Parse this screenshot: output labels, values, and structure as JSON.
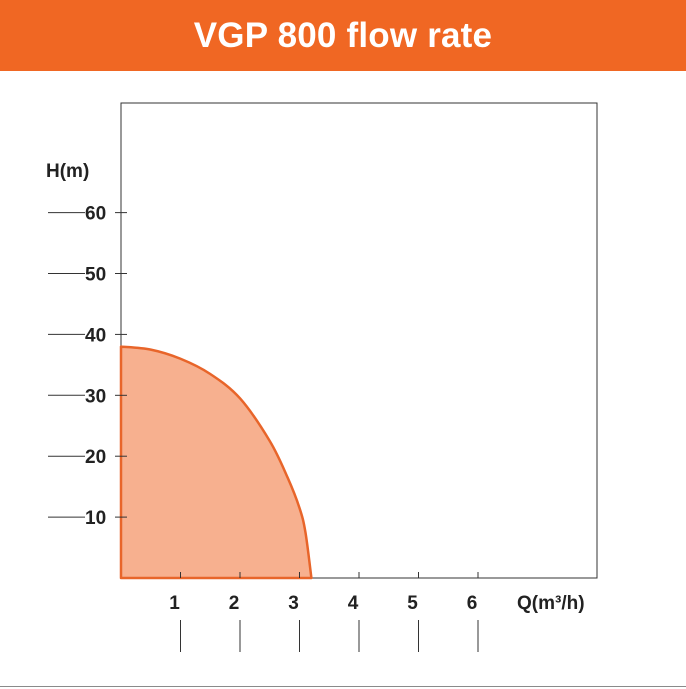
{
  "colors": {
    "accent": "#f06723",
    "curve_fill": "#f7b08f",
    "curve_stroke": "#e8652a",
    "axis": "#333333"
  },
  "chart_data": {
    "type": "area",
    "title": "VGP 800 flow rate",
    "xlabel": "Q(m³/h)",
    "ylabel": "H(m)",
    "xlim": [
      0,
      8
    ],
    "ylim": [
      0,
      78
    ],
    "x_ticks": [
      1,
      2,
      3,
      4,
      5,
      6
    ],
    "y_ticks": [
      10,
      20,
      30,
      40,
      50,
      60
    ],
    "grid": false,
    "series": [
      {
        "x": [
          0,
          0.5,
          1.0,
          1.5,
          2.0,
          2.5,
          2.8,
          3.0,
          3.1,
          3.2
        ],
        "values": [
          38,
          37.5,
          36,
          33.5,
          29.5,
          22.5,
          16.5,
          11.5,
          7.5,
          0
        ]
      }
    ]
  }
}
